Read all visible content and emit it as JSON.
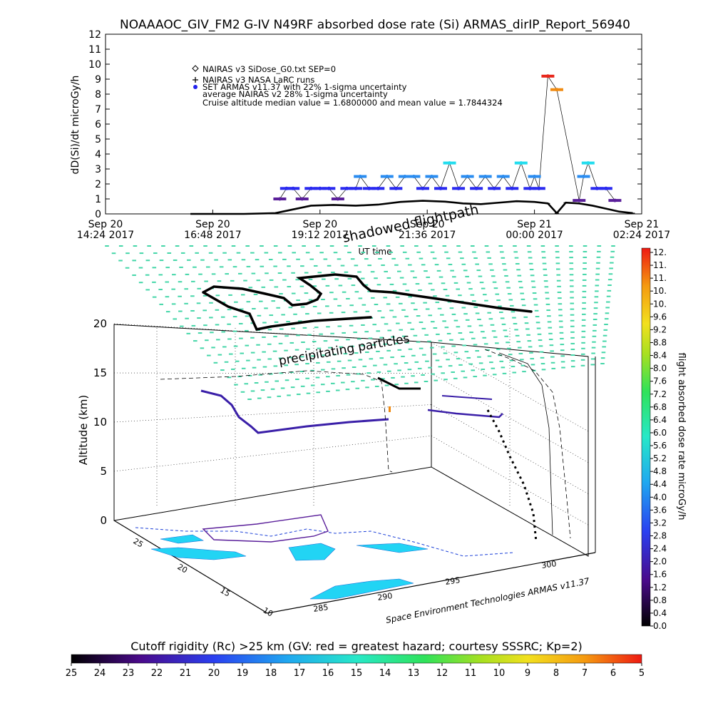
{
  "chart_data": [
    {
      "type": "line",
      "title": "NOAAAOC_GIV_FM2 G-IV   N49RF  absorbed dose rate (Si) ARMAS_dirIP_Report_56940",
      "ylabel": "dD(Si)/dt microGy/h",
      "xlabel": "UT time",
      "ylim": [
        0,
        12
      ],
      "yticks": [
        "0",
        "1",
        "2",
        "3",
        "4",
        "5",
        "6",
        "7",
        "8",
        "9",
        "10",
        "11",
        "12"
      ],
      "xticks": [
        {
          "top": "Sep 20",
          "bottom": "14:24 2017"
        },
        {
          "top": "Sep 20",
          "bottom": "16:48 2017"
        },
        {
          "top": "Sep 20",
          "bottom": "19:12 2017"
        },
        {
          "top": "Sep 20",
          "bottom": "21:36 2017"
        },
        {
          "top": "Sep 21",
          "bottom": "00:00 2017"
        },
        {
          "top": "Sep 21",
          "bottom": "02:24 2017"
        }
      ],
      "xlim_hours": [
        14.4,
        26.4
      ],
      "legend": [
        {
          "symbol": "diamond",
          "label": "NAIRAS v3 SiDose_G0.txt SEP=0"
        },
        {
          "symbol": "plus",
          "label": "NAIRAS v3 NASA LaRC runs"
        },
        {
          "symbol": "dot",
          "label": "SET ARMAS v11.37 with 22% 1-sigma uncertainty"
        },
        {
          "symbol": "none",
          "label": "average NAIRAS v2 28% 1-sigma uncertainty"
        },
        {
          "symbol": "none",
          "label": "Cruise altitude median value = 1.6800000 and mean value = 1.7844324"
        }
      ],
      "series": [
        {
          "name": "NAIRAS v3 SiDose_G0.txt SEP=0",
          "color": "#000000",
          "x_hours": [
            16.3,
            17.5,
            18.2,
            18.6,
            19.0,
            19.5,
            20.0,
            20.5,
            21.0,
            21.5,
            22.0,
            22.4,
            22.8,
            23.2,
            23.6,
            24.0,
            24.3,
            24.5,
            24.7,
            25.0,
            25.3,
            25.6,
            25.9,
            26.2
          ],
          "values": [
            0.0,
            0.0,
            0.05,
            0.3,
            0.55,
            0.6,
            0.55,
            0.62,
            0.8,
            0.88,
            0.82,
            0.7,
            0.65,
            0.75,
            0.85,
            0.8,
            0.7,
            0.05,
            0.75,
            0.7,
            0.55,
            0.35,
            0.15,
            0.05
          ]
        },
        {
          "name": "SET ARMAS v11.37 with 22% 1-sigma uncertainty",
          "color": "#2222ee",
          "x_hours": [
            18.3,
            18.45,
            18.6,
            18.8,
            19.0,
            19.2,
            19.4,
            19.6,
            19.8,
            20.0,
            20.1,
            20.3,
            20.5,
            20.7,
            20.9,
            21.1,
            21.3,
            21.5,
            21.7,
            21.9,
            22.1,
            22.3,
            22.5,
            22.7,
            22.9,
            23.1,
            23.3,
            23.5,
            23.7,
            23.9,
            24.0,
            24.1,
            24.3,
            24.5,
            25.0,
            25.1,
            25.2,
            25.4,
            25.6,
            25.8
          ],
          "values": [
            1.0,
            1.7,
            1.7,
            1.0,
            1.7,
            1.7,
            1.7,
            1.0,
            1.7,
            1.7,
            2.5,
            1.7,
            1.7,
            2.5,
            1.7,
            2.5,
            2.5,
            1.7,
            2.5,
            1.7,
            3.4,
            1.7,
            2.5,
            1.7,
            2.5,
            1.7,
            2.5,
            1.7,
            3.4,
            1.7,
            2.5,
            1.7,
            9.2,
            8.3,
            0.9,
            2.5,
            3.4,
            1.7,
            1.7,
            0.9
          ]
        }
      ]
    },
    {
      "type": "scatter",
      "title": "",
      "zlabel": "Altitude (km)",
      "zticks": [
        "0",
        "5",
        "10",
        "15",
        "20"
      ],
      "lat_ticks": [
        "10",
        "15",
        "20",
        "25"
      ],
      "lon_ticks": [
        "285",
        "290",
        "295",
        "300"
      ],
      "annotations": [
        "shadowed flightpath",
        "precipitating particles"
      ],
      "credit": "Space Environment Technologies ARMAS v11.37"
    }
  ],
  "colorbar_right": {
    "label": "flight absorbed dose rate microGy/h",
    "ticks": [
      "12.",
      "11.",
      "11.",
      "10.",
      "10.",
      "9.6",
      "9.2",
      "8.8",
      "8.4",
      "8.0",
      "7.6",
      "7.2",
      "6.8",
      "6.4",
      "6.0",
      "5.6",
      "5.2",
      "4.8",
      "4.4",
      "4.0",
      "3.6",
      "3.2",
      "2.8",
      "2.4",
      "2.0",
      "1.6",
      "1.2",
      "0.8",
      "0.4",
      "0.0"
    ]
  },
  "colorbar_bottom": {
    "label": "Cutoff rigidity (Rc) >25 km (GV: red = greatest hazard; courtesy SSSRC; Kp=2)",
    "ticks": [
      "25",
      "24",
      "23",
      "22",
      "21",
      "20",
      "19",
      "18",
      "17",
      "16",
      "15",
      "14",
      "13",
      "12",
      "11",
      "10",
      "9",
      "8",
      "7",
      "6",
      "5"
    ]
  },
  "colors": {
    "sky_grid": "#44d6a8",
    "land": "#22d4f4",
    "flight_low": "#3a1fa8",
    "armas_line": "#5a1f9a"
  }
}
